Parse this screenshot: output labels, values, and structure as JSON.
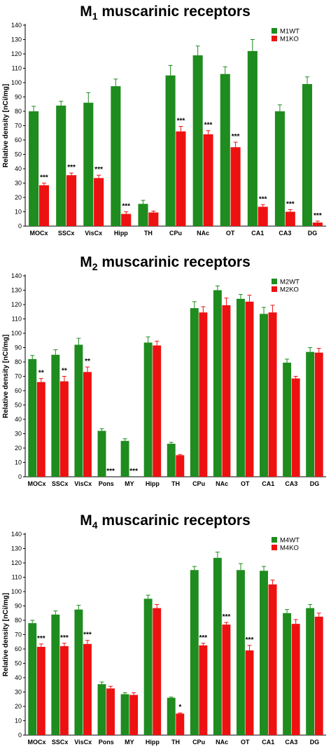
{
  "chart_data": [
    {
      "type": "bar",
      "title_main": "M",
      "title_sub": "1",
      "title_rest": " muscarinic receptors",
      "ylabel": "Relative density [nCi/mg]",
      "xlabel": "",
      "ylim": [
        0,
        140
      ],
      "ytick_step": 10,
      "grid": false,
      "legend_position": "top-right",
      "categories": [
        "MOCx",
        "SSCx",
        "VisCx",
        "Hipp",
        "TH",
        "CPu",
        "NAc",
        "OT",
        "CA1",
        "CA3",
        "DG"
      ],
      "series": [
        {
          "name": "M1WT",
          "color": "#1e8c1e",
          "values": [
            80,
            84,
            86,
            97.5,
            15.5,
            105,
            119,
            106,
            122,
            80,
            99
          ],
          "errors": [
            3.5,
            3,
            7,
            5,
            2.5,
            7,
            6.5,
            5,
            8,
            4.5,
            5
          ],
          "sig": [
            "",
            "",
            "",
            "",
            "",
            "",
            "",
            "",
            "",
            "",
            ""
          ]
        },
        {
          "name": "M1KO",
          "color": "#ee1111",
          "values": [
            28.5,
            35.5,
            33.5,
            8.5,
            9.5,
            66,
            64,
            55,
            13.5,
            10,
            2.5
          ],
          "errors": [
            1.5,
            1.5,
            2,
            1.5,
            1,
            3.5,
            2.5,
            3.5,
            1.5,
            1.5,
            1
          ],
          "sig": [
            "***",
            "***",
            "***",
            "***",
            "",
            "***",
            "***",
            "***",
            "***",
            "***",
            "***"
          ]
        }
      ]
    },
    {
      "type": "bar",
      "title_main": "M",
      "title_sub": "2",
      "title_rest": " muscarinic receptors",
      "ylabel": "Relative density [nCi/mg]",
      "xlabel": "",
      "ylim": [
        0,
        140
      ],
      "ytick_step": 10,
      "grid": false,
      "legend_position": "top-right",
      "categories": [
        "MOCx",
        "SSCx",
        "VisCx",
        "Pons",
        "MY",
        "Hipp",
        "TH",
        "CPu",
        "NAc",
        "OT",
        "CA1",
        "CA3",
        "DG"
      ],
      "series": [
        {
          "name": "M2WT",
          "color": "#1e8c1e",
          "values": [
            82,
            85,
            92,
            32,
            25,
            93.5,
            23,
            117.5,
            130,
            124,
            113.5,
            79.5,
            87
          ],
          "errors": [
            2.5,
            3.5,
            4.5,
            1.5,
            1.5,
            4,
            1,
            4.5,
            3,
            3,
            4.5,
            2.5,
            3
          ],
          "sig": [
            "",
            "",
            "",
            "",
            "",
            "",
            "",
            "",
            "",
            "",
            "",
            "",
            ""
          ]
        },
        {
          "name": "M2KO",
          "color": "#ee1111",
          "values": [
            66,
            66.5,
            73,
            0,
            0,
            91.5,
            15,
            114.5,
            119.5,
            122,
            114.5,
            68.5,
            86.5
          ],
          "errors": [
            2.5,
            3.5,
            3.5,
            0,
            0,
            3,
            0.5,
            4,
            5,
            4.5,
            5,
            1.5,
            3
          ],
          "sig": [
            "**",
            "**",
            "**",
            "***",
            "***",
            "",
            "",
            "",
            "",
            "",
            "",
            "",
            ""
          ]
        }
      ]
    },
    {
      "type": "bar",
      "title_main": "M",
      "title_sub": "4",
      "title_rest": " muscarinic receptors",
      "ylabel": "Relative density [nCi/mg]",
      "xlabel": "",
      "ylim": [
        0,
        140
      ],
      "ytick_step": 10,
      "grid": false,
      "legend_position": "top-right",
      "categories": [
        "MOCx",
        "SSCx",
        "VisCx",
        "Pons",
        "MY",
        "Hipp",
        "TH",
        "CPu",
        "NAc",
        "OT",
        "CA1",
        "CA3",
        "DG"
      ],
      "series": [
        {
          "name": "M4WT",
          "color": "#1e8c1e",
          "values": [
            78,
            84,
            87.5,
            35.5,
            28.5,
            95,
            26,
            115,
            123.5,
            115,
            114.5,
            85,
            88.5
          ],
          "errors": [
            2,
            2.5,
            3,
            1.5,
            1,
            2.5,
            0.5,
            2.5,
            4,
            4.5,
            3,
            2.5,
            2.5
          ],
          "sig": [
            "",
            "",
            "",
            "",
            "",
            "",
            "",
            "",
            "",
            "",
            "",
            "",
            ""
          ]
        },
        {
          "name": "M4KO",
          "color": "#ee1111",
          "values": [
            61.5,
            62,
            63.5,
            32.5,
            28,
            88.5,
            15,
            62.5,
            77,
            59,
            105,
            77.5,
            82.5
          ],
          "errors": [
            2,
            2,
            2.5,
            1.5,
            1.5,
            2.5,
            0.5,
            1.5,
            1.5,
            3.5,
            3,
            3,
            2.5
          ],
          "sig": [
            "***",
            "***",
            "***",
            "",
            "",
            "",
            "*",
            "***",
            "***",
            "***",
            "",
            "",
            ""
          ]
        }
      ]
    }
  ]
}
